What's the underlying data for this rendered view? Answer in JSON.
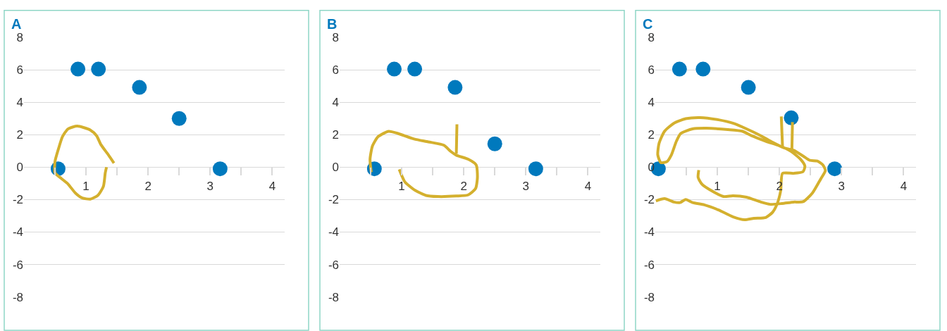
{
  "chart_data": [
    {
      "type": "scatter",
      "title": "A",
      "xlim": [
        0,
        4.2
      ],
      "ylim": [
        -8,
        8
      ],
      "xticks": [
        {
          "value": 0.5,
          "label": null
        },
        1,
        {
          "value": 1.5,
          "label": null
        },
        2,
        {
          "value": 2.5,
          "label": null
        },
        3,
        {
          "value": 3.5,
          "label": null
        },
        4
      ],
      "yticks": [
        -8,
        -6,
        -4,
        -2,
        0,
        2,
        4,
        6,
        8
      ],
      "grid": "y",
      "series": [
        {
          "marker": "circle",
          "color": "#0079bd",
          "x": [
            0.55,
            0.87,
            1.2,
            1.86,
            2.5,
            3.16
          ],
          "values": [
            -0.1,
            6.05,
            6.05,
            4.92,
            3.0,
            -0.1
          ]
        },
        {
          "type": "line",
          "color": "#d4b02e",
          "x": [
            1.45,
            1.36,
            1.24,
            1.17,
            1.07,
            0.86,
            0.71,
            0.62,
            0.56,
            0.5,
            0.5,
            0.6,
            0.71,
            0.83,
            0.94,
            1.07,
            1.19,
            1.28,
            1.31,
            1.33
          ],
          "values": [
            0.25,
            0.76,
            1.39,
            1.94,
            2.29,
            2.53,
            2.36,
            1.88,
            1.18,
            0.35,
            -0.35,
            -0.69,
            -1.04,
            -1.6,
            -1.9,
            -1.97,
            -1.74,
            -1.18,
            -0.35,
            0.0
          ]
        }
      ]
    },
    {
      "type": "scatter",
      "title": "B",
      "xlim": [
        0,
        4.2
      ],
      "ylim": [
        -8,
        8
      ],
      "xticks": [
        {
          "value": 0.5,
          "label": null
        },
        1,
        {
          "value": 1.5,
          "label": null
        },
        2,
        {
          "value": 2.5,
          "label": null
        },
        3,
        {
          "value": 3.5,
          "label": null
        },
        4
      ],
      "yticks": [
        -8,
        -6,
        -4,
        -2,
        0,
        2,
        4,
        6,
        8
      ],
      "grid": "y",
      "series": [
        {
          "marker": "circle",
          "color": "#0079bd",
          "x": [
            0.56,
            0.88,
            1.21,
            1.86,
            2.5,
            3.16
          ],
          "values": [
            -0.1,
            6.05,
            6.05,
            4.92,
            1.44,
            -0.1
          ]
        },
        {
          "type": "line",
          "color": "#d4b02e",
          "x": [
            0.51,
            0.49,
            0.53,
            0.62,
            0.79,
            0.94,
            1.2,
            1.43,
            1.68,
            1.79,
            1.88,
            2.07,
            2.2,
            2.22,
            2.19,
            2.07,
            1.88,
            1.58,
            1.39,
            1.2,
            1.05,
            0.96,
            null,
            1.89,
            1.88
          ],
          "values": [
            -0.31,
            0.49,
            1.32,
            1.88,
            2.21,
            2.08,
            1.74,
            1.56,
            1.35,
            0.97,
            0.74,
            0.49,
            0.14,
            -0.63,
            -1.32,
            -1.71,
            -1.78,
            -1.81,
            -1.74,
            -1.39,
            -0.9,
            -0.14,
            null,
            2.64,
            0.83
          ]
        }
      ]
    },
    {
      "type": "scatter",
      "title": "C",
      "xlim": [
        0,
        4.2
      ],
      "ylim": [
        -8,
        8
      ],
      "xticks": [
        {
          "value": 0.5,
          "label": null
        },
        1,
        {
          "value": 1.5,
          "label": null
        },
        2,
        {
          "value": 2.5,
          "label": null
        },
        3,
        {
          "value": 3.5,
          "label": null
        },
        4
      ],
      "yticks": [
        -8,
        -6,
        -4,
        -2,
        0,
        2,
        4,
        6,
        8
      ],
      "grid": "y",
      "series": [
        {
          "marker": "circle",
          "color": "#0079bd",
          "x": [
            0.05,
            0.39,
            0.77,
            1.5,
            2.19,
            2.89
          ],
          "values": [
            -0.1,
            6.05,
            6.05,
            4.92,
            3.04,
            -0.1
          ]
        },
        {
          "type": "line",
          "color": "#d4b02e",
          "x": [
            0.01,
            0.15,
            0.3,
            0.4,
            0.49,
            0.6,
            0.79,
            1.02,
            1.25,
            1.44,
            1.59,
            1.78,
            1.89,
            1.96,
            2.02,
            2.05,
            2.23,
            2.38,
            2.41,
            2.34,
            2.19,
            2.0,
            1.78,
            1.55,
            1.4,
            1.17,
            0.83,
            0.6,
            0.41,
            0.34,
            0.26,
            0.19,
            0.09,
            0.04,
            0.06,
            0.15,
            0.3,
            0.49,
            0.72,
            1.02,
            1.25,
            1.47,
            1.7,
            1.89,
            2.08,
            2.23,
            2.38,
            2.49,
            2.61,
            2.7,
            2.74,
            2.66,
            2.53,
            2.38,
            2.23,
            2.04,
            1.85,
            1.7,
            1.47,
            1.25,
            1.1,
            0.91,
            0.75,
            0.69,
            0.7,
            null,
            2.03,
            2.05,
            null,
            2.21,
            2.2
          ],
          "values": [
            -2.08,
            -1.94,
            -2.15,
            -2.18,
            -1.99,
            -2.18,
            -2.32,
            -2.64,
            -3.06,
            -3.24,
            -3.15,
            -3.1,
            -2.78,
            -2.29,
            -1.46,
            -0.38,
            -0.38,
            -0.28,
            0.07,
            0.49,
            0.97,
            1.32,
            1.6,
            1.94,
            2.22,
            2.32,
            2.4,
            2.36,
            2.08,
            1.6,
            0.76,
            0.35,
            0.28,
            0.76,
            1.46,
            2.22,
            2.71,
            2.99,
            3.06,
            2.92,
            2.71,
            2.36,
            1.94,
            1.53,
            1.18,
            1.04,
            0.69,
            0.42,
            0.38,
            0.14,
            -0.21,
            -0.76,
            -1.6,
            -2.13,
            -2.15,
            -2.24,
            -2.29,
            -2.15,
            -1.85,
            -1.76,
            -1.81,
            -1.46,
            -1.04,
            -0.63,
            -0.18,
            null,
            3.13,
            1.21,
            null,
            2.78,
            0.97
          ]
        }
      ]
    }
  ]
}
